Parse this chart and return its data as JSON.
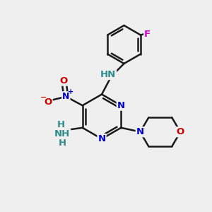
{
  "background_color": "#efefef",
  "bond_color": "#1a1a1a",
  "atom_colors": {
    "N": "#0000cc",
    "O": "#cc0000",
    "F": "#cc00cc",
    "H": "#2e8b8b",
    "C": "#1a1a1a",
    "Nplus": "#0000cc",
    "Ominus": "#cc0000"
  },
  "figsize": [
    3.0,
    3.0
  ],
  "dpi": 100
}
